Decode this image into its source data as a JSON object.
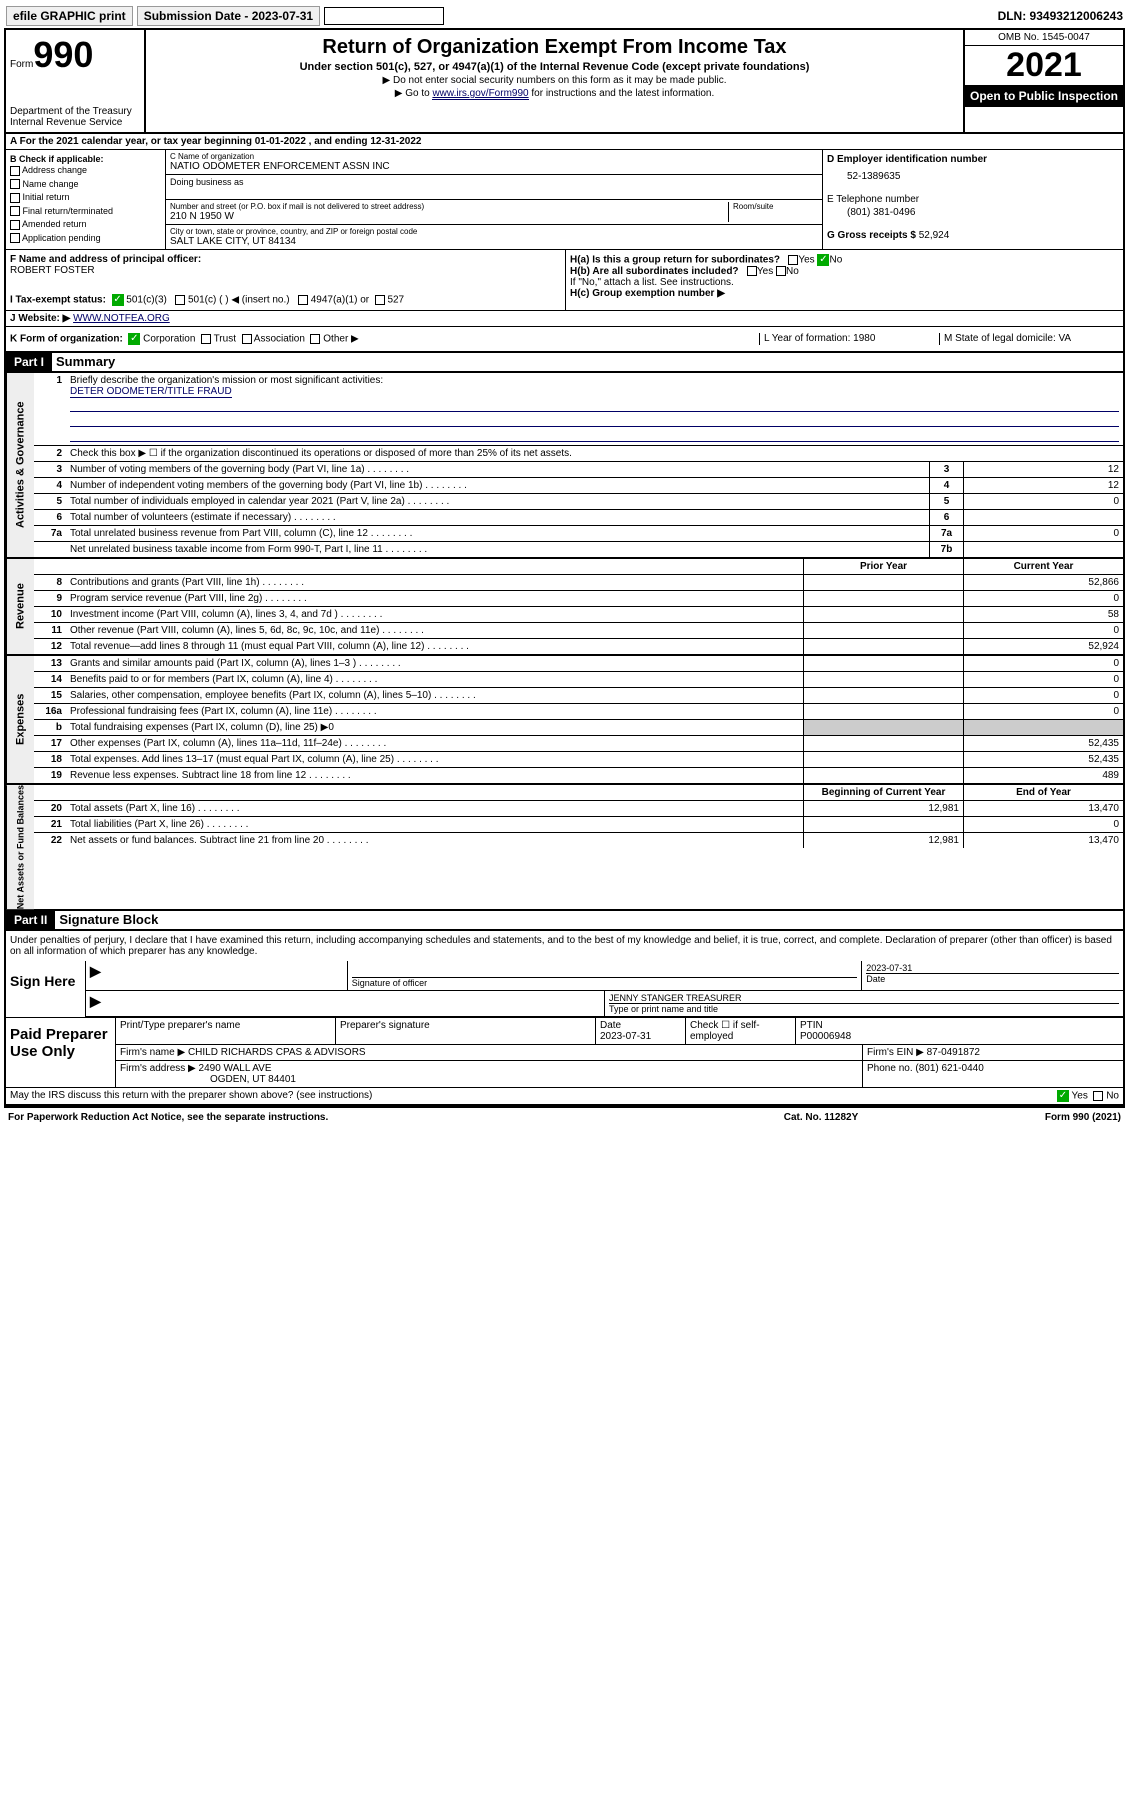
{
  "topbar": {
    "efile": "efile GRAPHIC print",
    "subdate_label": "Submission Date - 2023-07-31",
    "dln": "DLN: 93493212006243"
  },
  "header": {
    "form_word": "Form",
    "form_no": "990",
    "dept": "Department of the Treasury",
    "irs": "Internal Revenue Service",
    "title": "Return of Organization Exempt From Income Tax",
    "sub": "Under section 501(c), 527, or 4947(a)(1) of the Internal Revenue Code (except private foundations)",
    "note1": "▶ Do not enter social security numbers on this form as it may be made public.",
    "note2_pre": "▶ Go to ",
    "note2_link": "www.irs.gov/Form990",
    "note2_post": " for instructions and the latest information.",
    "omb": "OMB No. 1545-0047",
    "year": "2021",
    "inspect": "Open to Public Inspection"
  },
  "section_a": {
    "line": "A For the 2021 calendar year, or tax year beginning 01-01-2022   , and ending 12-31-2022"
  },
  "col_b": {
    "title": "B Check if applicable:",
    "opts": [
      "Address change",
      "Name change",
      "Initial return",
      "Final return/terminated",
      "Amended return",
      "Application pending"
    ]
  },
  "col_c": {
    "name_lbl": "C Name of organization",
    "name": "NATIO ODOMETER ENFORCEMENT ASSN INC",
    "dba_lbl": "Doing business as",
    "addr_lbl": "Number and street (or P.O. box if mail is not delivered to street address)",
    "room_lbl": "Room/suite",
    "addr": "210 N 1950 W",
    "city_lbl": "City or town, state or province, country, and ZIP or foreign postal code",
    "city": "SALT LAKE CITY, UT  84134"
  },
  "col_d": {
    "ein_lbl": "D Employer identification number",
    "ein": "52-1389635",
    "tel_lbl": "E Telephone number",
    "tel": "(801) 381-0496",
    "gross_lbl": "G Gross receipts $",
    "gross": "52,924"
  },
  "fh": {
    "f_lbl": "F Name and address of principal officer:",
    "f_name": "ROBERT FOSTER",
    "ha": "H(a)  Is this a group return for subordinates?",
    "hb": "H(b)  Are all subordinates included?",
    "hb_note": "If \"No,\" attach a list. See instructions.",
    "hc": "H(c)  Group exemption number ▶",
    "yn_yes": "Yes",
    "yn_no": "No"
  },
  "status": {
    "i_lbl": "I   Tax-exempt status:",
    "opts": [
      "501(c)(3)",
      "501(c) (  ) ◀ (insert no.)",
      "4947(a)(1) or",
      "527"
    ],
    "j_lbl": "J   Website: ▶",
    "j_val": "WWW.NOTFEA.ORG"
  },
  "klm": {
    "k": "K Form of organization:",
    "k_opts": [
      "Corporation",
      "Trust",
      "Association",
      "Other ▶"
    ],
    "l": "L Year of formation: 1980",
    "m": "M State of legal domicile: VA"
  },
  "part1": {
    "hdr": "Part I",
    "title": "Summary"
  },
  "gov": {
    "label": "Activities & Governance",
    "l1": "Briefly describe the organization's mission or most significant activities:",
    "l1v": "DETER ODOMETER/TITLE FRAUD",
    "l2": "Check this box ▶ ☐ if the organization discontinued its operations or disposed of more than 25% of its net assets.",
    "rows": [
      {
        "n": "3",
        "t": "Number of voting members of the governing body (Part VI, line 1a)",
        "b": "3",
        "v": "12"
      },
      {
        "n": "4",
        "t": "Number of independent voting members of the governing body (Part VI, line 1b)",
        "b": "4",
        "v": "12"
      },
      {
        "n": "5",
        "t": "Total number of individuals employed in calendar year 2021 (Part V, line 2a)",
        "b": "5",
        "v": "0"
      },
      {
        "n": "6",
        "t": "Total number of volunteers (estimate if necessary)",
        "b": "6",
        "v": ""
      },
      {
        "n": "7a",
        "t": "Total unrelated business revenue from Part VIII, column (C), line 12",
        "b": "7a",
        "v": "0"
      },
      {
        "n": "",
        "t": "Net unrelated business taxable income from Form 990-T, Part I, line 11",
        "b": "7b",
        "v": ""
      }
    ]
  },
  "cols": {
    "prior": "Prior Year",
    "current": "Current Year",
    "begin": "Beginning of Current Year",
    "end": "End of Year"
  },
  "rev": {
    "label": "Revenue",
    "rows": [
      {
        "n": "8",
        "t": "Contributions and grants (Part VIII, line 1h)",
        "p": "",
        "c": "52,866"
      },
      {
        "n": "9",
        "t": "Program service revenue (Part VIII, line 2g)",
        "p": "",
        "c": "0"
      },
      {
        "n": "10",
        "t": "Investment income (Part VIII, column (A), lines 3, 4, and 7d )",
        "p": "",
        "c": "58"
      },
      {
        "n": "11",
        "t": "Other revenue (Part VIII, column (A), lines 5, 6d, 8c, 9c, 10c, and 11e)",
        "p": "",
        "c": "0"
      },
      {
        "n": "12",
        "t": "Total revenue—add lines 8 through 11 (must equal Part VIII, column (A), line 12)",
        "p": "",
        "c": "52,924"
      }
    ]
  },
  "exp": {
    "label": "Expenses",
    "rows": [
      {
        "n": "13",
        "t": "Grants and similar amounts paid (Part IX, column (A), lines 1–3 )",
        "p": "",
        "c": "0"
      },
      {
        "n": "14",
        "t": "Benefits paid to or for members (Part IX, column (A), line 4)",
        "p": "",
        "c": "0"
      },
      {
        "n": "15",
        "t": "Salaries, other compensation, employee benefits (Part IX, column (A), lines 5–10)",
        "p": "",
        "c": "0"
      },
      {
        "n": "16a",
        "t": "Professional fundraising fees (Part IX, column (A), line 11e)",
        "p": "",
        "c": "0"
      },
      {
        "n": "b",
        "t": "Total fundraising expenses (Part IX, column (D), line 25) ▶0",
        "grey": true
      },
      {
        "n": "17",
        "t": "Other expenses (Part IX, column (A), lines 11a–11d, 11f–24e)",
        "p": "",
        "c": "52,435"
      },
      {
        "n": "18",
        "t": "Total expenses. Add lines 13–17 (must equal Part IX, column (A), line 25)",
        "p": "",
        "c": "52,435"
      },
      {
        "n": "19",
        "t": "Revenue less expenses. Subtract line 18 from line 12",
        "p": "",
        "c": "489"
      }
    ]
  },
  "net": {
    "label": "Net Assets or Fund Balances",
    "rows": [
      {
        "n": "20",
        "t": "Total assets (Part X, line 16)",
        "p": "12,981",
        "c": "13,470"
      },
      {
        "n": "21",
        "t": "Total liabilities (Part X, line 26)",
        "p": "",
        "c": "0"
      },
      {
        "n": "22",
        "t": "Net assets or fund balances. Subtract line 21 from line 20",
        "p": "12,981",
        "c": "13,470"
      }
    ]
  },
  "part2": {
    "hdr": "Part II",
    "title": "Signature Block"
  },
  "penalty": "Under penalties of perjury, I declare that I have examined this return, including accompanying schedules and statements, and to the best of my knowledge and belief, it is true, correct, and complete. Declaration of preparer (other than officer) is based on all information of which preparer has any knowledge.",
  "sign": {
    "here": "Sign Here",
    "sig_lbl": "Signature of officer",
    "date_lbl": "Date",
    "date": "2023-07-31",
    "name": "JENNY STANGER  TREASURER",
    "name_lbl": "Type or print name and title"
  },
  "paid": {
    "here": "Paid Preparer Use Only",
    "r1": {
      "c1": "Print/Type preparer's name",
      "c2": "Preparer's signature",
      "c3": "Date",
      "c3v": "2023-07-31",
      "c4": "Check ☐ if self-employed",
      "c5": "PTIN",
      "c5v": "P00006948"
    },
    "r2": {
      "c1": "Firm's name    ▶",
      "c1v": "CHILD RICHARDS CPAS & ADVISORS",
      "c2": "Firm's EIN ▶",
      "c2v": "87-0491872"
    },
    "r3": {
      "c1": "Firm's address ▶",
      "c1v": "2490 WALL AVE",
      "c1v2": "OGDEN, UT  84401",
      "c2": "Phone no. (801) 621-0440"
    }
  },
  "discuss": "May the IRS discuss this return with the preparer shown above? (see instructions)",
  "footer": {
    "l": "For Paperwork Reduction Act Notice, see the separate instructions.",
    "m": "Cat. No. 11282Y",
    "r": "Form 990 (2021)"
  }
}
